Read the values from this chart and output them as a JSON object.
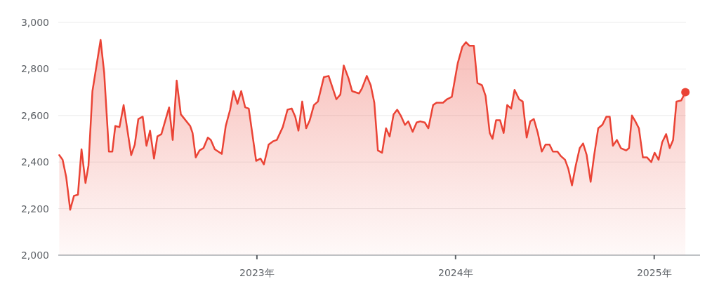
{
  "chart_data": {
    "type": "area",
    "color": "#ea4335",
    "grid": "y",
    "xlim": [
      2022,
      2025.16
    ],
    "ylim": [
      2000,
      3000
    ],
    "xticks": [
      {
        "value": 2023,
        "label": "2023年"
      },
      {
        "value": 2024,
        "label": "2024年"
      },
      {
        "value": 2025,
        "label": "2025年"
      }
    ],
    "yticks": [
      {
        "value": 2000,
        "label": "2,000"
      },
      {
        "value": 2200,
        "label": "2,200"
      },
      {
        "value": 2400,
        "label": "2,400"
      },
      {
        "value": 2600,
        "label": "2,600"
      },
      {
        "value": 2800,
        "label": "2,800"
      },
      {
        "value": 3000,
        "label": "3,000"
      }
    ],
    "x": [
      2022.005,
      2022.022,
      2022.04,
      2022.06,
      2022.079,
      2022.099,
      2022.117,
      2022.137,
      2022.152,
      2022.172,
      2022.213,
      2022.231,
      2022.255,
      2022.272,
      2022.287,
      2022.308,
      2022.329,
      2022.367,
      2022.385,
      2022.403,
      2022.425,
      2022.444,
      2022.462,
      2022.482,
      2022.499,
      2022.519,
      2022.558,
      2022.576,
      2022.596,
      2022.617,
      2022.664,
      2022.676,
      2022.692,
      2022.711,
      2022.731,
      2022.753,
      2022.768,
      2022.788,
      2022.823,
      2022.843,
      2022.865,
      2022.882,
      2022.902,
      2022.921,
      2022.941,
      2022.959,
      2022.996,
      2023.018,
      2023.035,
      2023.059,
      2023.083,
      2023.1,
      2023.13,
      2023.154,
      2023.175,
      2023.193,
      2023.209,
      2023.228,
      2023.248,
      2023.266,
      2023.287,
      2023.307,
      2023.337,
      2023.361,
      2023.4,
      2023.42,
      2023.437,
      2023.461,
      2023.479,
      2023.514,
      2023.528,
      2023.553,
      2023.573,
      2023.591,
      2023.609,
      2023.63,
      2023.65,
      2023.668,
      2023.688,
      2023.706,
      2023.724,
      2023.745,
      2023.762,
      2023.784,
      2023.804,
      2023.822,
      2023.845,
      2023.863,
      2023.887,
      2023.904,
      2023.937,
      2023.957,
      2023.981,
      2024.011,
      2024.034,
      2024.052,
      2024.069,
      2024.092,
      2024.11,
      2024.133,
      2024.151,
      2024.172,
      2024.186,
      2024.204,
      2024.224,
      2024.242,
      2024.26,
      2024.28,
      2024.297,
      2024.32,
      2024.338,
      2024.358,
      2024.376,
      2024.394,
      2024.414,
      2024.434,
      2024.453,
      2024.473,
      2024.49,
      2024.513,
      2024.531,
      2024.551,
      2024.568,
      2024.586,
      2024.605,
      2024.625,
      2024.642,
      2024.66,
      2024.68,
      2024.697,
      2024.718,
      2024.739,
      2024.759,
      2024.776,
      2024.792,
      2024.812,
      2024.832,
      2024.859,
      2024.873,
      2024.888,
      2024.905,
      2024.923,
      2024.943,
      2024.964,
      2024.985,
      2025.002,
      2025.022,
      2025.04,
      2025.06,
      2025.078,
      2025.095,
      2025.112,
      2025.136,
      2025.157
    ],
    "values": [
      2430,
      2410,
      2335,
      2195,
      2255,
      2260,
      2455,
      2310,
      2385,
      2705,
      2925,
      2785,
      2445,
      2445,
      2555,
      2550,
      2645,
      2430,
      2475,
      2585,
      2595,
      2470,
      2535,
      2415,
      2510,
      2520,
      2635,
      2495,
      2750,
      2605,
      2555,
      2525,
      2420,
      2450,
      2460,
      2505,
      2495,
      2455,
      2435,
      2555,
      2625,
      2705,
      2650,
      2705,
      2635,
      2630,
      2405,
      2415,
      2390,
      2475,
      2490,
      2495,
      2550,
      2625,
      2630,
      2595,
      2535,
      2660,
      2545,
      2580,
      2645,
      2660,
      2765,
      2770,
      2670,
      2690,
      2815,
      2760,
      2705,
      2695,
      2715,
      2770,
      2730,
      2655,
      2450,
      2440,
      2545,
      2510,
      2605,
      2625,
      2600,
      2560,
      2575,
      2530,
      2570,
      2575,
      2570,
      2545,
      2645,
      2655,
      2655,
      2670,
      2680,
      2825,
      2895,
      2915,
      2900,
      2900,
      2740,
      2730,
      2685,
      2525,
      2500,
      2580,
      2580,
      2525,
      2645,
      2630,
      2710,
      2670,
      2660,
      2505,
      2575,
      2585,
      2525,
      2445,
      2475,
      2475,
      2445,
      2445,
      2425,
      2410,
      2370,
      2300,
      2385,
      2460,
      2480,
      2430,
      2315,
      2425,
      2545,
      2560,
      2595,
      2595,
      2470,
      2495,
      2460,
      2450,
      2460,
      2600,
      2575,
      2545,
      2420,
      2420,
      2400,
      2440,
      2410,
      2485,
      2520,
      2460,
      2495,
      2660,
      2665,
      2700
    ]
  }
}
